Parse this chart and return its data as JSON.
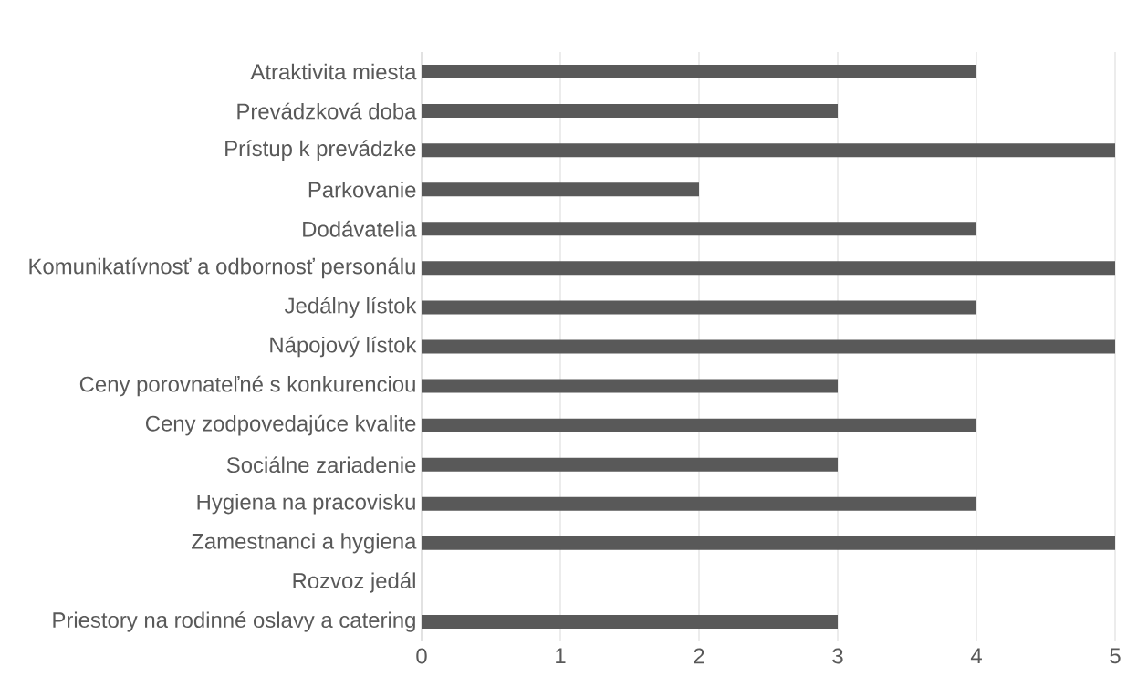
{
  "chart_data": {
    "type": "bar",
    "orientation": "horizontal",
    "categories": [
      "Atraktivita miesta",
      "Prevádzková doba",
      "Prístup k prevádzke",
      "Parkovanie",
      "Dodávatelia",
      "Komunikatívnosť a odbornosť personálu",
      "Jedálny lístok",
      "Nápojový lístok",
      "Ceny porovnateľné s konkurenciou",
      "Ceny zodpovedajúce kvalite",
      "Sociálne zariadenie",
      "Hygiena na pracovisku",
      "Zamestnanci a hygiena",
      "Rozvoz jedál",
      "Priestory na rodinné oslavy a catering"
    ],
    "values": [
      4,
      3,
      5,
      2,
      4,
      5,
      4,
      5,
      3,
      4,
      3,
      4,
      5,
      0,
      3
    ],
    "color": "#595959",
    "xlim": [
      0,
      5
    ],
    "xticks": [
      0,
      1,
      2,
      3,
      4,
      5
    ],
    "grid": "x"
  }
}
